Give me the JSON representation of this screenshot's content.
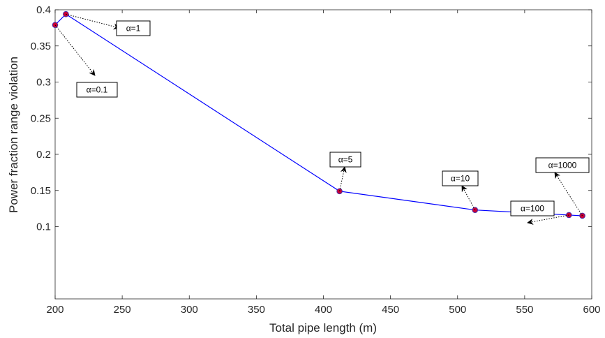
{
  "chart_data": {
    "type": "line",
    "xlabel": "Total pipe length (m)",
    "ylabel": "Power fraction range violation",
    "xlim": [
      200,
      600
    ],
    "ylim": [
      0,
      0.4
    ],
    "xticks": [
      200,
      250,
      300,
      350,
      400,
      450,
      500,
      550,
      600
    ],
    "xtick_labels": [
      "200",
      "250",
      "300",
      "350",
      "400",
      "450",
      "500",
      "550",
      "600"
    ],
    "yticks": [
      0.1,
      0.15,
      0.2,
      0.25,
      0.3,
      0.35,
      0.4
    ],
    "ytick_labels": [
      "0.1",
      "0.15",
      "0.2",
      "0.25",
      "0.3",
      "0.35",
      "0.4"
    ],
    "grid": false,
    "line_color": "#0000ff",
    "marker_color": "#cc0033",
    "series": [
      {
        "x": [
          200,
          208,
          412,
          513,
          583,
          593
        ],
        "y": [
          0.379,
          0.394,
          0.149,
          0.123,
          0.116,
          0.115
        ]
      }
    ],
    "annotations": [
      {
        "text": "α=1",
        "point_index": 1
      },
      {
        "text": "α=0.1",
        "point_index": 0
      },
      {
        "text": "α=5",
        "point_index": 2
      },
      {
        "text": "α=10",
        "point_index": 3
      },
      {
        "text": "α=100",
        "point_index": 4
      },
      {
        "text": "α=1000",
        "point_index": 5
      }
    ]
  }
}
